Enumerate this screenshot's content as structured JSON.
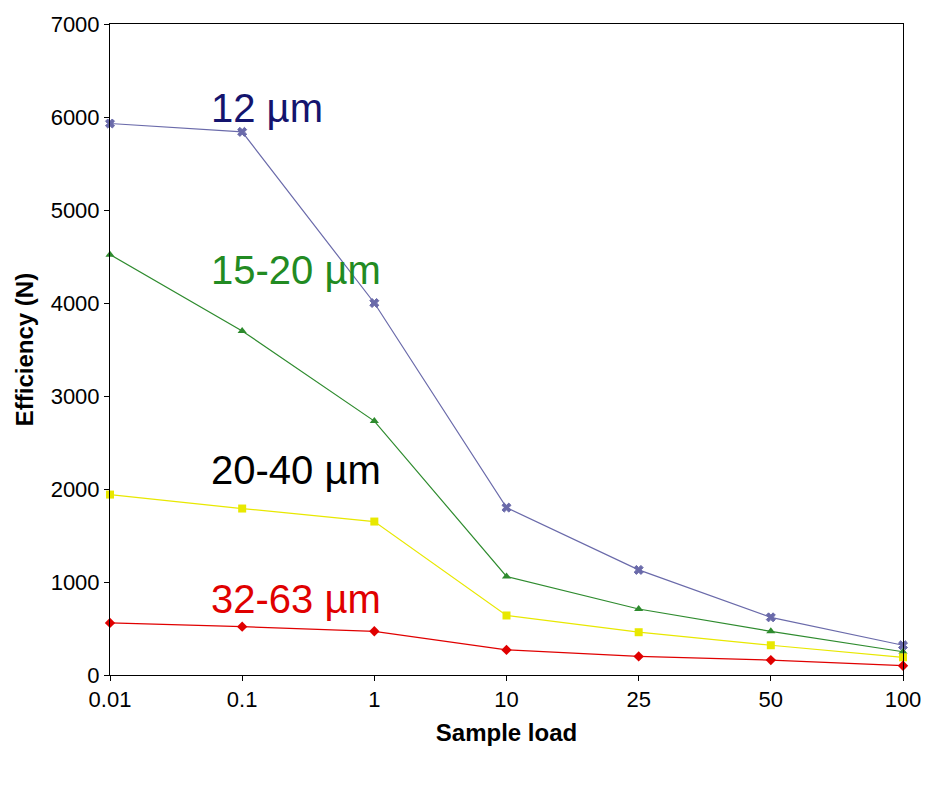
{
  "chart_data": {
    "type": "line",
    "x_label": "Sample load",
    "y_label": "Efficiency (N)",
    "categories": [
      "0.01",
      "0.1",
      "1",
      "10",
      "25",
      "50",
      "100"
    ],
    "series": [
      {
        "name": "12 µm",
        "color": "#6a6aaa",
        "marker": "x",
        "values": [
          5930,
          5840,
          4000,
          1800,
          1130,
          620,
          320
        ]
      },
      {
        "name": "15-20 µm",
        "color": "#2e8b2e",
        "marker": "triangle-up",
        "values": [
          4520,
          3700,
          2730,
          1060,
          710,
          470,
          250
        ]
      },
      {
        "name": "20-40 µm",
        "color": "#e8e800",
        "marker": "square",
        "values": [
          1940,
          1790,
          1650,
          640,
          460,
          320,
          190
        ]
      },
      {
        "name": "32-63 µm",
        "color": "#e00000",
        "marker": "diamond",
        "values": [
          560,
          520,
          470,
          270,
          200,
          160,
          100
        ]
      }
    ],
    "ylim": [
      0,
      7000
    ],
    "yticks": [
      0,
      1000,
      2000,
      3000,
      4000,
      5000,
      6000,
      7000
    ],
    "grid": false
  }
}
